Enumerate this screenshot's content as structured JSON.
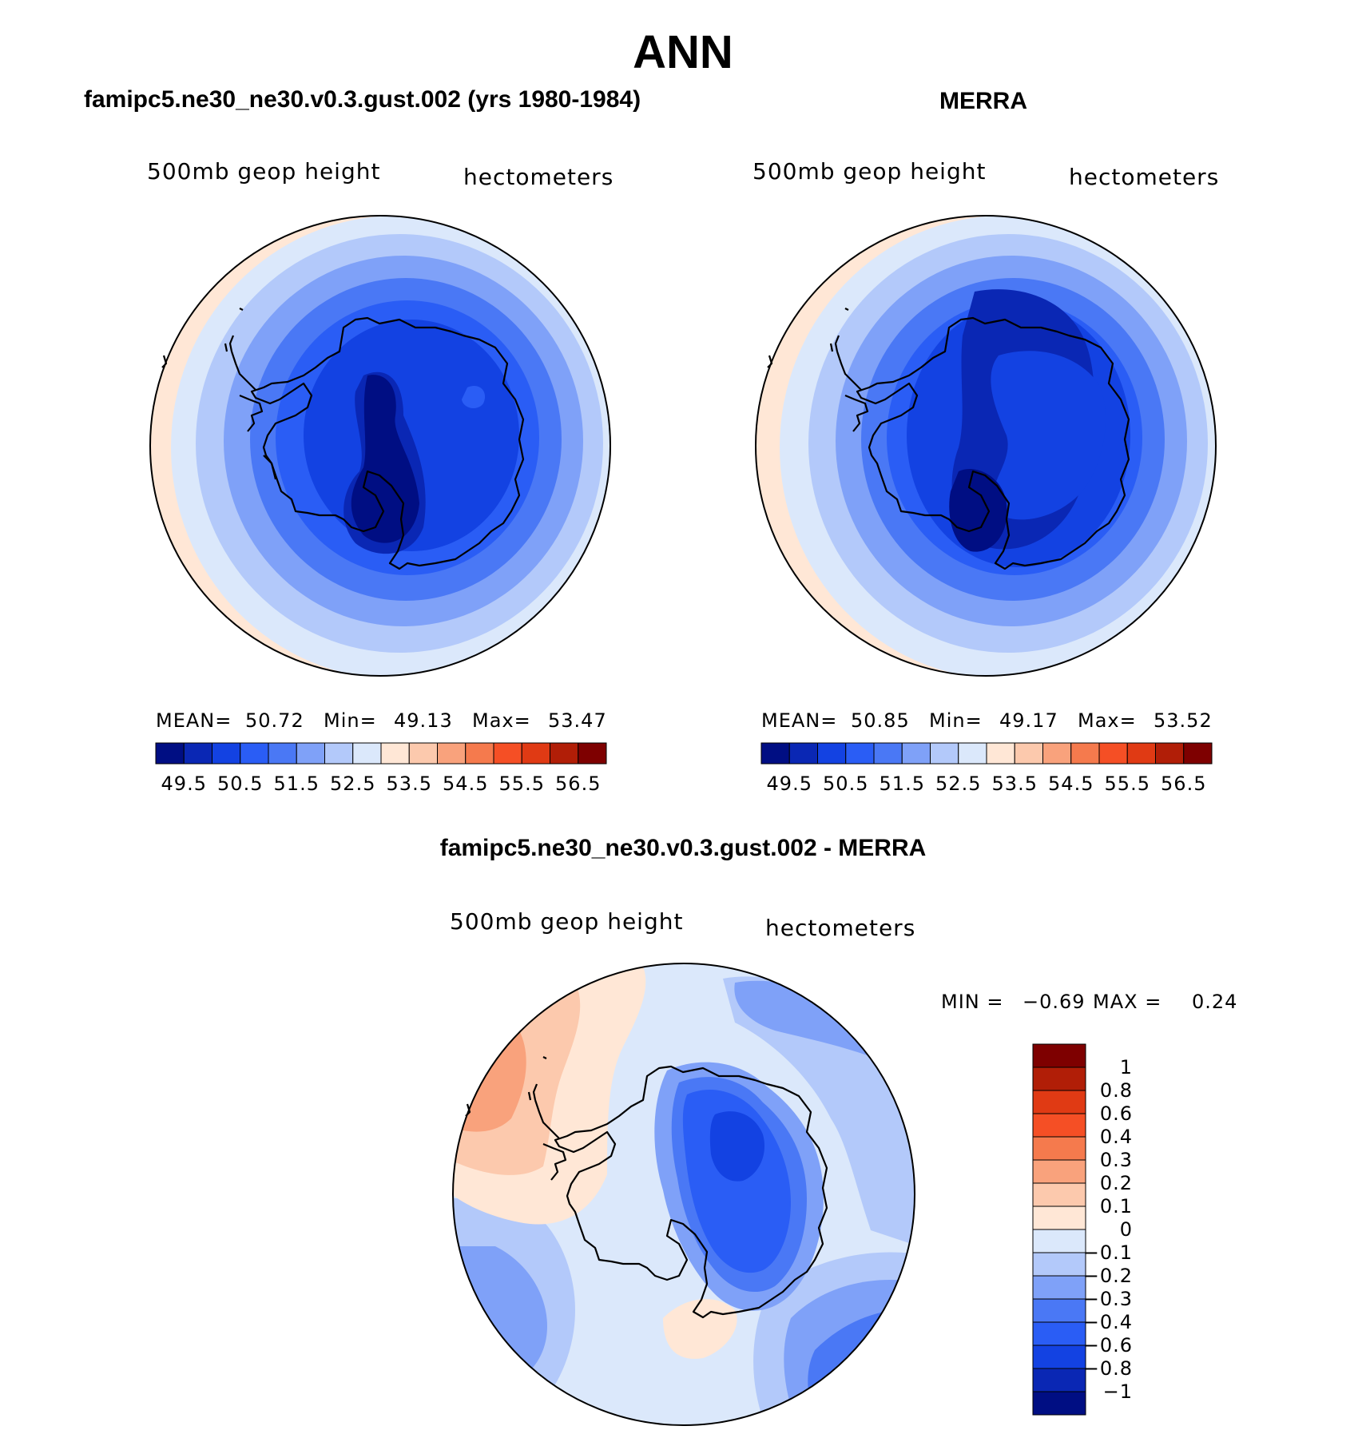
{
  "main_title": "ANN",
  "panels": [
    {
      "title": "famipc5.ne30_ne30.v0.3.gust.002 (yrs 1980-1984)",
      "field_label": "500mb geop height",
      "units_label": "hectometers",
      "stats": {
        "mean_label": "MEAN=",
        "mean": "50.72",
        "min_label": "Min=",
        "min": "49.13",
        "max_label": "Max=",
        "max": "53.47"
      },
      "colorbar_ticks": [
        "49.5",
        "50.5",
        "51.5",
        "52.5",
        "53.5",
        "54.5",
        "55.5",
        "56.5"
      ]
    },
    {
      "title": "MERRA",
      "field_label": "500mb geop height",
      "units_label": "hectometers",
      "stats": {
        "mean_label": "MEAN=",
        "mean": "50.85",
        "min_label": "Min=",
        "min": "49.17",
        "max_label": "Max=",
        "max": "53.52"
      },
      "colorbar_ticks": [
        "49.5",
        "50.5",
        "51.5",
        "52.5",
        "53.5",
        "54.5",
        "55.5",
        "56.5"
      ]
    },
    {
      "title": "famipc5.ne30_ne30.v0.3.gust.002 - MERRA",
      "field_label": "500mb geop height",
      "units_label": "hectometers",
      "stats": {
        "min_label": "MIN =",
        "min": "−0.69",
        "max_label": "MAX =",
        "max": "0.24"
      },
      "colorbar_ticks": [
        "1",
        "0.8",
        "0.6",
        "0.4",
        "0.3",
        "0.2",
        "0.1",
        "0",
        "−0.1",
        "−0.2",
        "−0.3",
        "−0.4",
        "−0.6",
        "−0.8",
        "−1"
      ]
    }
  ],
  "colors": {
    "abs_scale": [
      "#000e83",
      "#0a27b4",
      "#1342e2",
      "#2a5df5",
      "#4a78f5",
      "#7fa1f8",
      "#b3c9fa",
      "#dbe8fb",
      "#ffe7d6",
      "#fcc9ad",
      "#f9a27c",
      "#f57a4d",
      "#f54f25",
      "#e03a14",
      "#b11e07",
      "#7e0000"
    ],
    "diff_scale": [
      "#7e0000",
      "#b11e07",
      "#e03a14",
      "#f54f25",
      "#f57a4d",
      "#f9a27c",
      "#fcc9ad",
      "#ffe7d6",
      "#dbe8fb",
      "#b3c9fa",
      "#7fa1f8",
      "#4a78f5",
      "#2a5df5",
      "#1342e2",
      "#0a27b4",
      "#000e83"
    ]
  }
}
